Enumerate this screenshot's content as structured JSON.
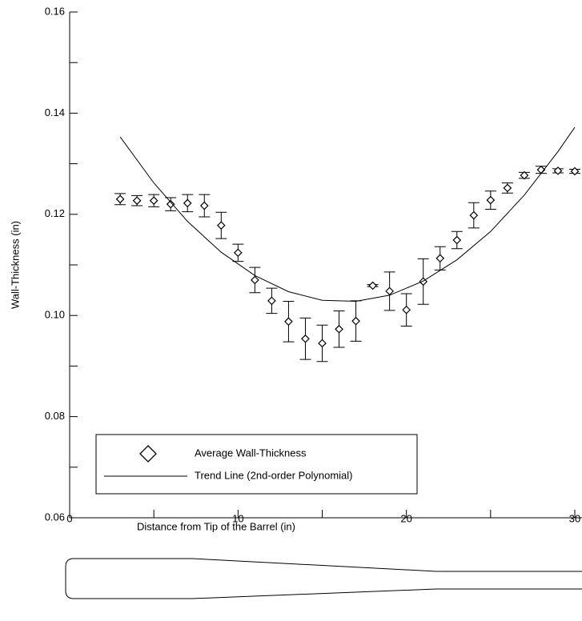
{
  "chart_data": {
    "type": "scatter",
    "xlabel": "Distance from Tip of the Barrel (in)",
    "ylabel": "Wall-Thickness (in)",
    "xlim": [
      0,
      30
    ],
    "xticks": [
      0,
      10,
      20,
      30
    ],
    "xminorticks": [
      5,
      15,
      25
    ],
    "ylim": [
      0.06,
      0.16
    ],
    "yticks": [
      0.06,
      0.08,
      {
        "value": 0.1,
        "label": "0.10"
      },
      0.12,
      0.14,
      0.16
    ],
    "yminorticks": [
      0.07,
      0.09,
      0.11,
      0.13,
      0.15
    ],
    "series": [
      {
        "name": "Average Wall-Thickness",
        "type": "scatter",
        "color": "#000000",
        "x": [
          3,
          4,
          5,
          6,
          7,
          8,
          9,
          10,
          11,
          12,
          13,
          14,
          15,
          16,
          17,
          18,
          19,
          20,
          21,
          22,
          23,
          24,
          25,
          26,
          27,
          28,
          29,
          30
        ],
        "values": [
          0.123,
          0.1227,
          0.1227,
          0.122,
          0.1222,
          0.1217,
          0.1178,
          0.1124,
          0.107,
          0.1029,
          0.0988,
          0.0954,
          0.0945,
          0.0973,
          0.0989,
          0.1059,
          0.1048,
          0.1011,
          0.1067,
          0.1113,
          0.1149,
          0.1198,
          0.1228,
          0.1252,
          0.1277,
          0.1288,
          0.1286,
          0.1285
        ],
        "errors": [
          0.0011,
          0.001,
          0.0012,
          0.0013,
          0.0017,
          0.0022,
          0.0026,
          0.0017,
          0.0025,
          0.0025,
          0.004,
          0.0041,
          0.0036,
          0.0036,
          0.004,
          0.0002,
          0.0038,
          0.0032,
          0.0045,
          0.0023,
          0.0017,
          0.0025,
          0.0018,
          0.001,
          0.0006,
          0.0007,
          0.0004,
          0.0004
        ]
      },
      {
        "name": "Trend Line (2nd-order Polynomial)",
        "type": "line",
        "color": "#000000",
        "x": [
          3,
          5,
          7,
          9,
          11,
          13,
          15,
          17,
          19,
          21,
          23,
          25,
          27,
          29,
          30
        ],
        "values": [
          0.1353,
          0.1262,
          0.1186,
          0.1125,
          0.1079,
          0.1047,
          0.103,
          0.1028,
          0.104,
          0.1068,
          0.111,
          0.1166,
          0.1238,
          0.1324,
          0.1372
        ]
      }
    ]
  }
}
